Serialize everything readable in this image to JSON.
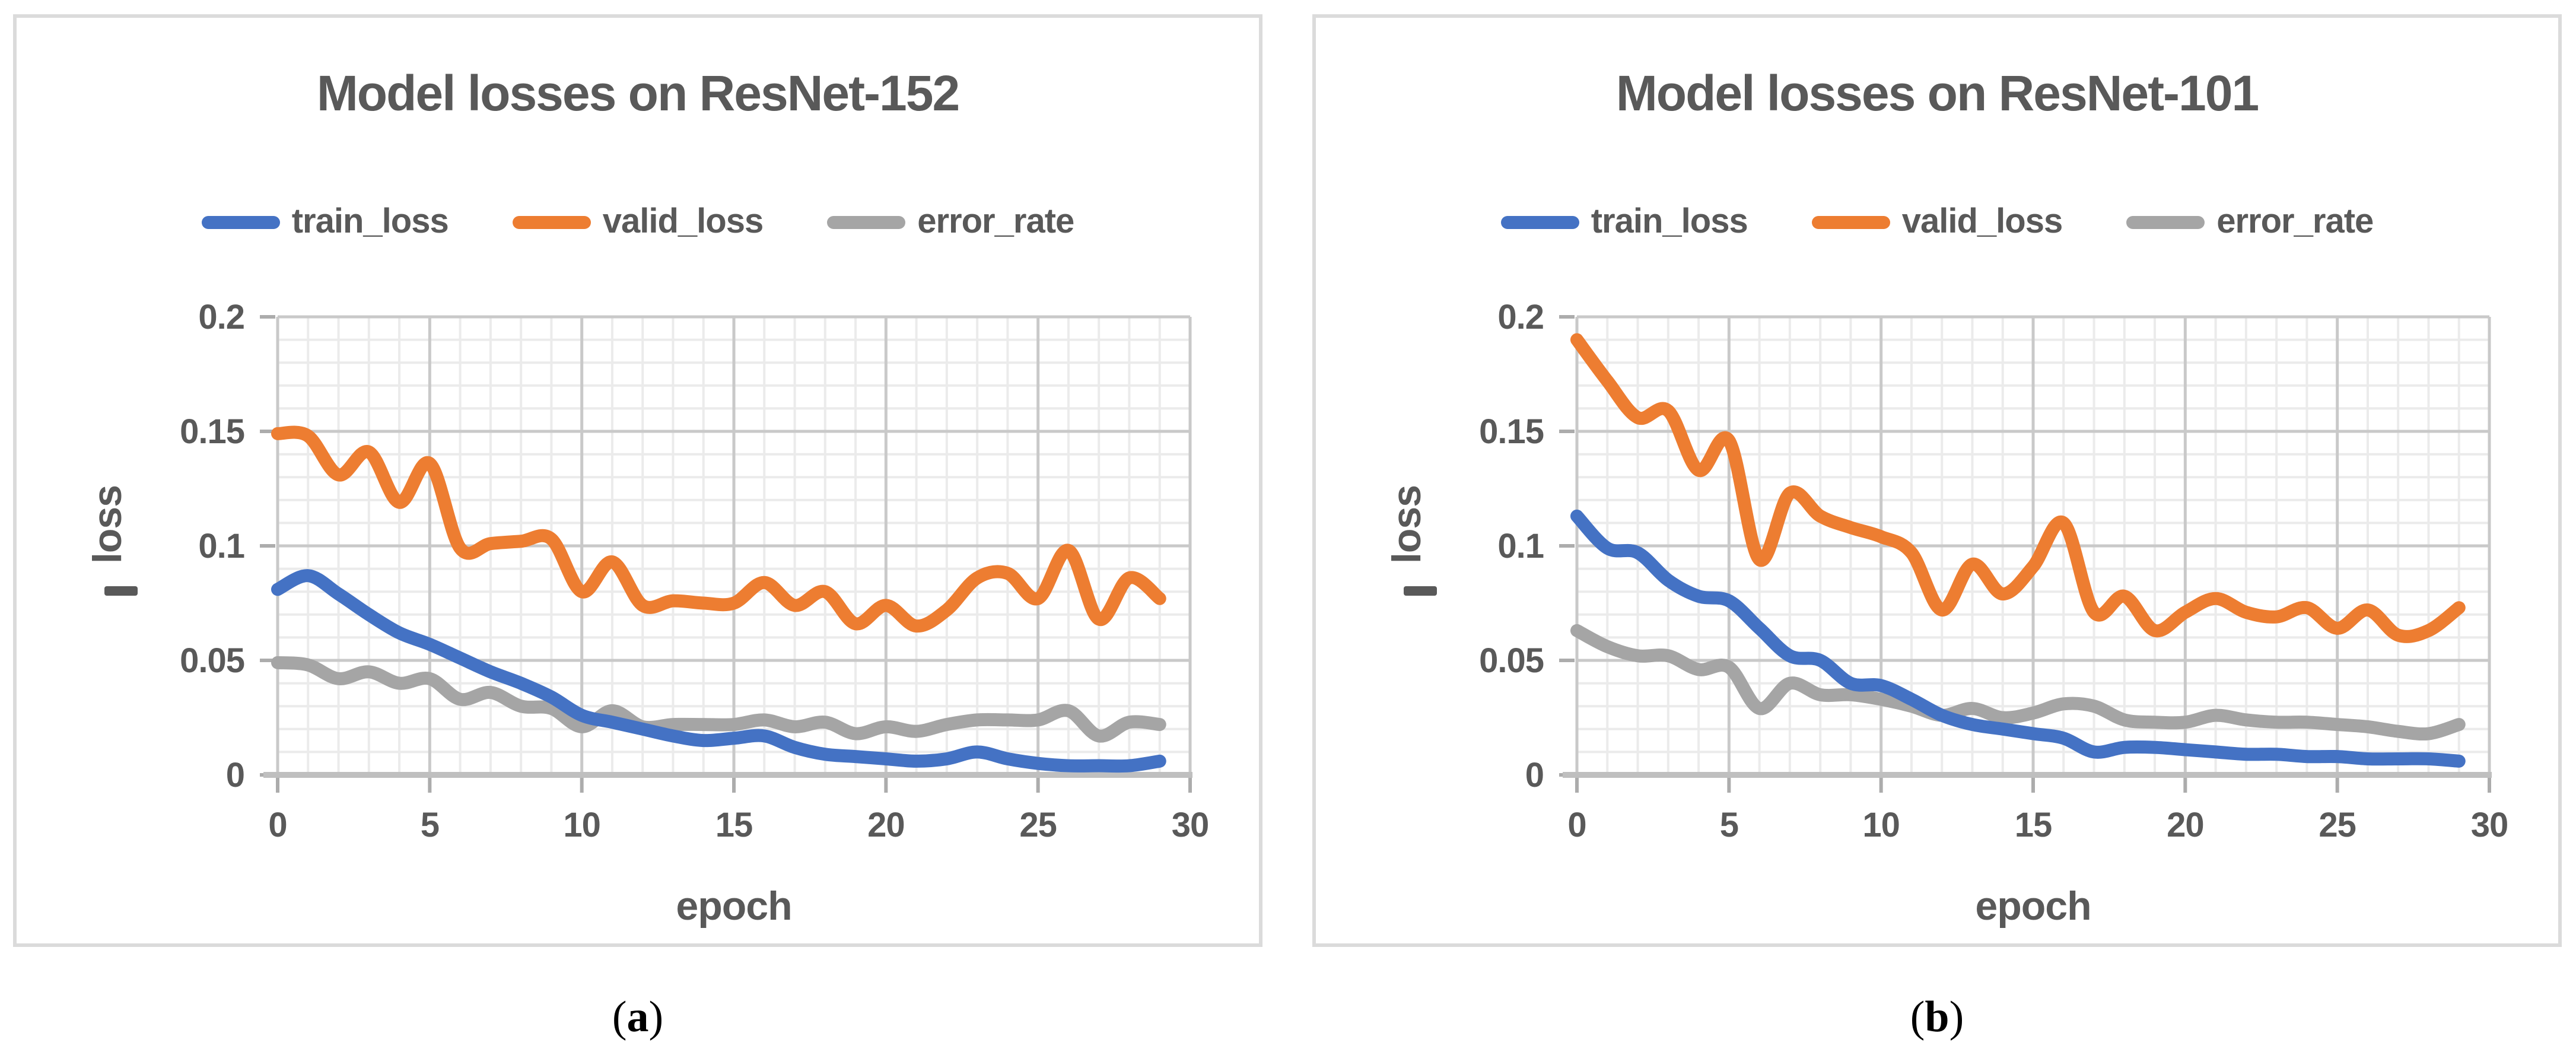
{
  "style": {
    "background": "#FFFFFF",
    "panel_border": "#DBDBDB",
    "text_color": "#595959",
    "caption_color": "#000000",
    "axis_color": "#BFBFBF",
    "major_grid": "#C9C9C9",
    "minor_grid": "#EBEBEB",
    "tick_color": "#ACACAC"
  },
  "chart_data": [
    {
      "type": "line",
      "title": "Model losses on ResNet-152",
      "caption_open": "(",
      "caption_letter": "a",
      "caption_close": ")",
      "xlabel": "epoch",
      "ylabel": "loss",
      "xlim": [
        0,
        30
      ],
      "ylim": [
        0,
        0.2
      ],
      "x_minor_step": 1,
      "y_minor_step": 0.01,
      "grid": "on",
      "legend_position": "top",
      "xticks": [
        [
          0,
          "0"
        ],
        [
          5,
          "5"
        ],
        [
          10,
          "10"
        ],
        [
          15,
          "15"
        ],
        [
          20,
          "20"
        ],
        [
          25,
          "25"
        ],
        [
          30,
          "30"
        ]
      ],
      "yticks": [
        [
          0,
          "0"
        ],
        [
          0.05,
          "0.05"
        ],
        [
          0.1,
          "0.1"
        ],
        [
          0.15,
          "0.15"
        ],
        [
          0.2,
          "0.2"
        ]
      ],
      "x": [
        0,
        1,
        2,
        3,
        4,
        5,
        6,
        7,
        8,
        9,
        10,
        11,
        12,
        13,
        14,
        15,
        16,
        17,
        18,
        19,
        20,
        21,
        22,
        23,
        24,
        25,
        26,
        27,
        28,
        29
      ],
      "series": [
        {
          "name": "train_loss",
          "color": "#4472C4",
          "values": [
            0.081,
            0.087,
            0.079,
            0.07,
            0.062,
            0.057,
            0.051,
            0.045,
            0.04,
            0.034,
            0.026,
            0.023,
            0.02,
            0.017,
            0.015,
            0.016,
            0.017,
            0.012,
            0.009,
            0.008,
            0.007,
            0.006,
            0.007,
            0.01,
            0.007,
            0.005,
            0.004,
            0.004,
            0.004,
            0.006
          ]
        },
        {
          "name": "valid_loss",
          "color": "#ED7D31",
          "values": [
            0.149,
            0.148,
            0.131,
            0.141,
            0.119,
            0.136,
            0.099,
            0.101,
            0.102,
            0.103,
            0.08,
            0.093,
            0.074,
            0.076,
            0.075,
            0.075,
            0.084,
            0.074,
            0.08,
            0.066,
            0.074,
            0.065,
            0.072,
            0.086,
            0.088,
            0.077,
            0.098,
            0.068,
            0.086,
            0.077
          ]
        },
        {
          "name": "error_rate",
          "color": "#A5A5A5",
          "values": [
            0.049,
            0.048,
            0.042,
            0.045,
            0.04,
            0.042,
            0.033,
            0.036,
            0.03,
            0.029,
            0.021,
            0.028,
            0.021,
            0.022,
            0.022,
            0.022,
            0.024,
            0.021,
            0.023,
            0.018,
            0.021,
            0.019,
            0.022,
            0.024,
            0.024,
            0.024,
            0.028,
            0.017,
            0.023,
            0.022
          ]
        }
      ]
    },
    {
      "type": "line",
      "title": "Model losses on ResNet-101",
      "caption_open": "(",
      "caption_letter": "b",
      "caption_close": ")",
      "xlabel": "epoch",
      "ylabel": "loss",
      "xlim": [
        0,
        30
      ],
      "ylim": [
        0,
        0.2
      ],
      "x_minor_step": 1,
      "y_minor_step": 0.01,
      "grid": "on",
      "legend_position": "top",
      "xticks": [
        [
          0,
          "0"
        ],
        [
          5,
          "5"
        ],
        [
          10,
          "10"
        ],
        [
          15,
          "15"
        ],
        [
          20,
          "20"
        ],
        [
          25,
          "25"
        ],
        [
          30,
          "30"
        ]
      ],
      "yticks": [
        [
          0,
          "0"
        ],
        [
          0.05,
          "0.05"
        ],
        [
          0.1,
          "0.1"
        ],
        [
          0.15,
          "0.15"
        ],
        [
          0.2,
          "0.2"
        ]
      ],
      "x": [
        0,
        1,
        2,
        3,
        4,
        5,
        6,
        7,
        8,
        9,
        10,
        11,
        12,
        13,
        14,
        15,
        16,
        17,
        18,
        19,
        20,
        21,
        22,
        23,
        24,
        25,
        26,
        27,
        28,
        29
      ],
      "series": [
        {
          "name": "train_loss",
          "color": "#4472C4",
          "values": [
            0.113,
            0.099,
            0.097,
            0.085,
            0.078,
            0.076,
            0.064,
            0.052,
            0.05,
            0.04,
            0.039,
            0.033,
            0.026,
            0.022,
            0.02,
            0.018,
            0.016,
            0.01,
            0.012,
            0.012,
            0.011,
            0.01,
            0.009,
            0.009,
            0.008,
            0.008,
            0.007,
            0.007,
            0.007,
            0.006
          ]
        },
        {
          "name": "valid_loss",
          "color": "#ED7D31",
          "values": [
            0.19,
            0.172,
            0.156,
            0.159,
            0.133,
            0.146,
            0.094,
            0.123,
            0.113,
            0.108,
            0.104,
            0.097,
            0.072,
            0.092,
            0.079,
            0.091,
            0.11,
            0.071,
            0.078,
            0.063,
            0.071,
            0.077,
            0.071,
            0.069,
            0.073,
            0.064,
            0.072,
            0.061,
            0.063,
            0.073
          ]
        },
        {
          "name": "error_rate",
          "color": "#A5A5A5",
          "values": [
            0.063,
            0.056,
            0.052,
            0.052,
            0.046,
            0.047,
            0.029,
            0.04,
            0.035,
            0.035,
            0.033,
            0.03,
            0.026,
            0.029,
            0.025,
            0.027,
            0.031,
            0.03,
            0.024,
            0.023,
            0.023,
            0.026,
            0.024,
            0.023,
            0.023,
            0.022,
            0.021,
            0.019,
            0.018,
            0.022
          ]
        }
      ]
    }
  ]
}
